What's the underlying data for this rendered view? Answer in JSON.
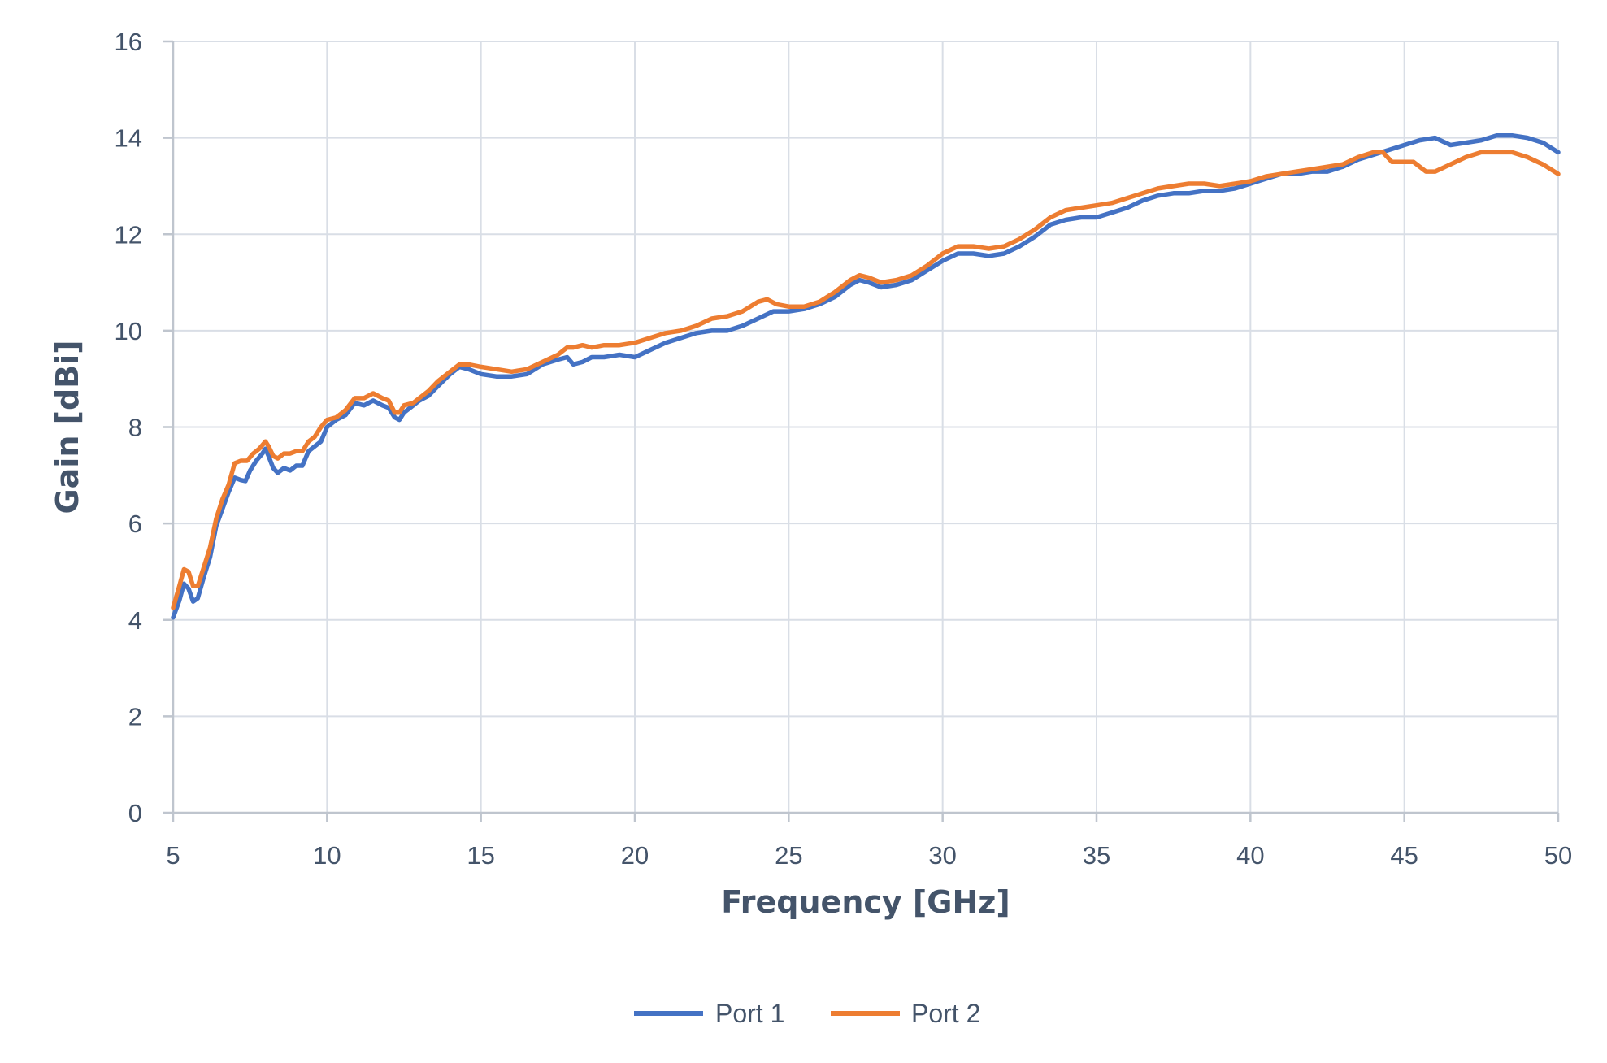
{
  "chart_data": {
    "type": "line",
    "title": "",
    "xlabel": "Frequency [GHz]",
    "ylabel": "Gain [dBi]",
    "xlim": [
      5,
      50
    ],
    "ylim": [
      0,
      16
    ],
    "x_ticks": [
      5,
      10,
      15,
      20,
      25,
      30,
      35,
      40,
      45,
      50
    ],
    "y_ticks": [
      0,
      2,
      4,
      6,
      8,
      10,
      12,
      14,
      16
    ],
    "grid": true,
    "legend_position": "bottom-center",
    "series": [
      {
        "name": "Port 1",
        "color": "#4472C4",
        "points": [
          [
            5.0,
            4.05
          ],
          [
            5.2,
            4.4
          ],
          [
            5.35,
            4.75
          ],
          [
            5.5,
            4.65
          ],
          [
            5.65,
            4.38
          ],
          [
            5.8,
            4.45
          ],
          [
            6.0,
            4.9
          ],
          [
            6.2,
            5.3
          ],
          [
            6.4,
            5.95
          ],
          [
            6.6,
            6.3
          ],
          [
            6.8,
            6.65
          ],
          [
            7.0,
            6.95
          ],
          [
            7.2,
            6.9
          ],
          [
            7.35,
            6.88
          ],
          [
            7.5,
            7.1
          ],
          [
            7.7,
            7.3
          ],
          [
            7.9,
            7.45
          ],
          [
            8.0,
            7.55
          ],
          [
            8.1,
            7.4
          ],
          [
            8.25,
            7.15
          ],
          [
            8.4,
            7.05
          ],
          [
            8.6,
            7.15
          ],
          [
            8.8,
            7.1
          ],
          [
            9.0,
            7.2
          ],
          [
            9.2,
            7.2
          ],
          [
            9.4,
            7.5
          ],
          [
            9.6,
            7.6
          ],
          [
            9.8,
            7.7
          ],
          [
            10.0,
            8.0
          ],
          [
            10.3,
            8.15
          ],
          [
            10.6,
            8.25
          ],
          [
            10.9,
            8.5
          ],
          [
            11.2,
            8.45
          ],
          [
            11.5,
            8.55
          ],
          [
            11.8,
            8.45
          ],
          [
            12.0,
            8.4
          ],
          [
            12.2,
            8.2
          ],
          [
            12.35,
            8.15
          ],
          [
            12.5,
            8.3
          ],
          [
            12.8,
            8.45
          ],
          [
            13.0,
            8.55
          ],
          [
            13.3,
            8.65
          ],
          [
            13.6,
            8.85
          ],
          [
            14.0,
            9.1
          ],
          [
            14.3,
            9.25
          ],
          [
            14.6,
            9.2
          ],
          [
            15.0,
            9.1
          ],
          [
            15.5,
            9.05
          ],
          [
            16.0,
            9.05
          ],
          [
            16.5,
            9.1
          ],
          [
            17.0,
            9.3
          ],
          [
            17.5,
            9.4
          ],
          [
            17.8,
            9.45
          ],
          [
            18.0,
            9.3
          ],
          [
            18.3,
            9.35
          ],
          [
            18.6,
            9.45
          ],
          [
            19.0,
            9.45
          ],
          [
            19.5,
            9.5
          ],
          [
            20.0,
            9.45
          ],
          [
            20.5,
            9.6
          ],
          [
            21.0,
            9.75
          ],
          [
            21.5,
            9.85
          ],
          [
            22.0,
            9.95
          ],
          [
            22.5,
            10.0
          ],
          [
            23.0,
            10.0
          ],
          [
            23.5,
            10.1
          ],
          [
            24.0,
            10.25
          ],
          [
            24.5,
            10.4
          ],
          [
            25.0,
            10.4
          ],
          [
            25.5,
            10.45
          ],
          [
            26.0,
            10.55
          ],
          [
            26.5,
            10.7
          ],
          [
            27.0,
            10.95
          ],
          [
            27.3,
            11.05
          ],
          [
            27.6,
            11.0
          ],
          [
            28.0,
            10.9
          ],
          [
            28.5,
            10.95
          ],
          [
            29.0,
            11.05
          ],
          [
            29.5,
            11.25
          ],
          [
            30.0,
            11.45
          ],
          [
            30.5,
            11.6
          ],
          [
            31.0,
            11.6
          ],
          [
            31.5,
            11.55
          ],
          [
            32.0,
            11.6
          ],
          [
            32.5,
            11.75
          ],
          [
            33.0,
            11.95
          ],
          [
            33.5,
            12.2
          ],
          [
            34.0,
            12.3
          ],
          [
            34.5,
            12.35
          ],
          [
            35.0,
            12.35
          ],
          [
            35.5,
            12.45
          ],
          [
            36.0,
            12.55
          ],
          [
            36.5,
            12.7
          ],
          [
            37.0,
            12.8
          ],
          [
            37.5,
            12.85
          ],
          [
            38.0,
            12.85
          ],
          [
            38.5,
            12.9
          ],
          [
            39.0,
            12.9
          ],
          [
            39.5,
            12.95
          ],
          [
            40.0,
            13.05
          ],
          [
            40.5,
            13.15
          ],
          [
            41.0,
            13.25
          ],
          [
            41.5,
            13.25
          ],
          [
            42.0,
            13.3
          ],
          [
            42.5,
            13.3
          ],
          [
            43.0,
            13.4
          ],
          [
            43.5,
            13.55
          ],
          [
            44.0,
            13.65
          ],
          [
            44.5,
            13.75
          ],
          [
            45.0,
            13.85
          ],
          [
            45.5,
            13.95
          ],
          [
            46.0,
            14.0
          ],
          [
            46.5,
            13.85
          ],
          [
            47.0,
            13.9
          ],
          [
            47.5,
            13.95
          ],
          [
            48.0,
            14.05
          ],
          [
            48.5,
            14.05
          ],
          [
            49.0,
            14.0
          ],
          [
            49.5,
            13.9
          ],
          [
            50.0,
            13.7
          ]
        ]
      },
      {
        "name": "Port 2",
        "color": "#ED7D31",
        "points": [
          [
            5.0,
            4.25
          ],
          [
            5.2,
            4.7
          ],
          [
            5.35,
            5.05
          ],
          [
            5.5,
            5.0
          ],
          [
            5.65,
            4.7
          ],
          [
            5.8,
            4.7
          ],
          [
            6.0,
            5.1
          ],
          [
            6.2,
            5.5
          ],
          [
            6.4,
            6.1
          ],
          [
            6.6,
            6.5
          ],
          [
            6.8,
            6.8
          ],
          [
            7.0,
            7.25
          ],
          [
            7.2,
            7.3
          ],
          [
            7.4,
            7.3
          ],
          [
            7.6,
            7.45
          ],
          [
            7.8,
            7.55
          ],
          [
            8.0,
            7.7
          ],
          [
            8.1,
            7.6
          ],
          [
            8.25,
            7.4
          ],
          [
            8.4,
            7.35
          ],
          [
            8.6,
            7.45
          ],
          [
            8.8,
            7.45
          ],
          [
            9.0,
            7.5
          ],
          [
            9.2,
            7.5
          ],
          [
            9.4,
            7.7
          ],
          [
            9.6,
            7.8
          ],
          [
            9.8,
            8.0
          ],
          [
            10.0,
            8.15
          ],
          [
            10.3,
            8.2
          ],
          [
            10.6,
            8.35
          ],
          [
            10.9,
            8.6
          ],
          [
            11.2,
            8.6
          ],
          [
            11.5,
            8.7
          ],
          [
            11.8,
            8.6
          ],
          [
            12.0,
            8.55
          ],
          [
            12.2,
            8.3
          ],
          [
            12.35,
            8.3
          ],
          [
            12.5,
            8.45
          ],
          [
            12.8,
            8.5
          ],
          [
            13.0,
            8.6
          ],
          [
            13.3,
            8.75
          ],
          [
            13.6,
            8.95
          ],
          [
            14.0,
            9.15
          ],
          [
            14.3,
            9.3
          ],
          [
            14.6,
            9.3
          ],
          [
            15.0,
            9.25
          ],
          [
            15.5,
            9.2
          ],
          [
            16.0,
            9.15
          ],
          [
            16.5,
            9.2
          ],
          [
            17.0,
            9.35
          ],
          [
            17.5,
            9.5
          ],
          [
            17.8,
            9.65
          ],
          [
            18.0,
            9.65
          ],
          [
            18.3,
            9.7
          ],
          [
            18.6,
            9.65
          ],
          [
            19.0,
            9.7
          ],
          [
            19.5,
            9.7
          ],
          [
            20.0,
            9.75
          ],
          [
            20.5,
            9.85
          ],
          [
            21.0,
            9.95
          ],
          [
            21.5,
            10.0
          ],
          [
            22.0,
            10.1
          ],
          [
            22.5,
            10.25
          ],
          [
            23.0,
            10.3
          ],
          [
            23.5,
            10.4
          ],
          [
            24.0,
            10.6
          ],
          [
            24.3,
            10.65
          ],
          [
            24.6,
            10.55
          ],
          [
            25.0,
            10.5
          ],
          [
            25.5,
            10.5
          ],
          [
            26.0,
            10.6
          ],
          [
            26.5,
            10.8
          ],
          [
            27.0,
            11.05
          ],
          [
            27.3,
            11.15
          ],
          [
            27.6,
            11.1
          ],
          [
            28.0,
            11.0
          ],
          [
            28.5,
            11.05
          ],
          [
            29.0,
            11.15
          ],
          [
            29.5,
            11.35
          ],
          [
            30.0,
            11.6
          ],
          [
            30.5,
            11.75
          ],
          [
            31.0,
            11.75
          ],
          [
            31.5,
            11.7
          ],
          [
            32.0,
            11.75
          ],
          [
            32.5,
            11.9
          ],
          [
            33.0,
            12.1
          ],
          [
            33.5,
            12.35
          ],
          [
            34.0,
            12.5
          ],
          [
            34.5,
            12.55
          ],
          [
            35.0,
            12.6
          ],
          [
            35.5,
            12.65
          ],
          [
            36.0,
            12.75
          ],
          [
            36.5,
            12.85
          ],
          [
            37.0,
            12.95
          ],
          [
            37.5,
            13.0
          ],
          [
            38.0,
            13.05
          ],
          [
            38.5,
            13.05
          ],
          [
            39.0,
            13.0
          ],
          [
            39.5,
            13.05
          ],
          [
            40.0,
            13.1
          ],
          [
            40.5,
            13.2
          ],
          [
            41.0,
            13.25
          ],
          [
            41.5,
            13.3
          ],
          [
            42.0,
            13.35
          ],
          [
            42.5,
            13.4
          ],
          [
            43.0,
            13.45
          ],
          [
            43.5,
            13.6
          ],
          [
            44.0,
            13.7
          ],
          [
            44.3,
            13.7
          ],
          [
            44.6,
            13.5
          ],
          [
            45.0,
            13.5
          ],
          [
            45.3,
            13.5
          ],
          [
            45.7,
            13.3
          ],
          [
            46.0,
            13.3
          ],
          [
            46.5,
            13.45
          ],
          [
            47.0,
            13.6
          ],
          [
            47.5,
            13.7
          ],
          [
            48.0,
            13.7
          ],
          [
            48.5,
            13.7
          ],
          [
            49.0,
            13.6
          ],
          [
            49.5,
            13.45
          ],
          [
            50.0,
            13.25
          ]
        ]
      }
    ]
  }
}
